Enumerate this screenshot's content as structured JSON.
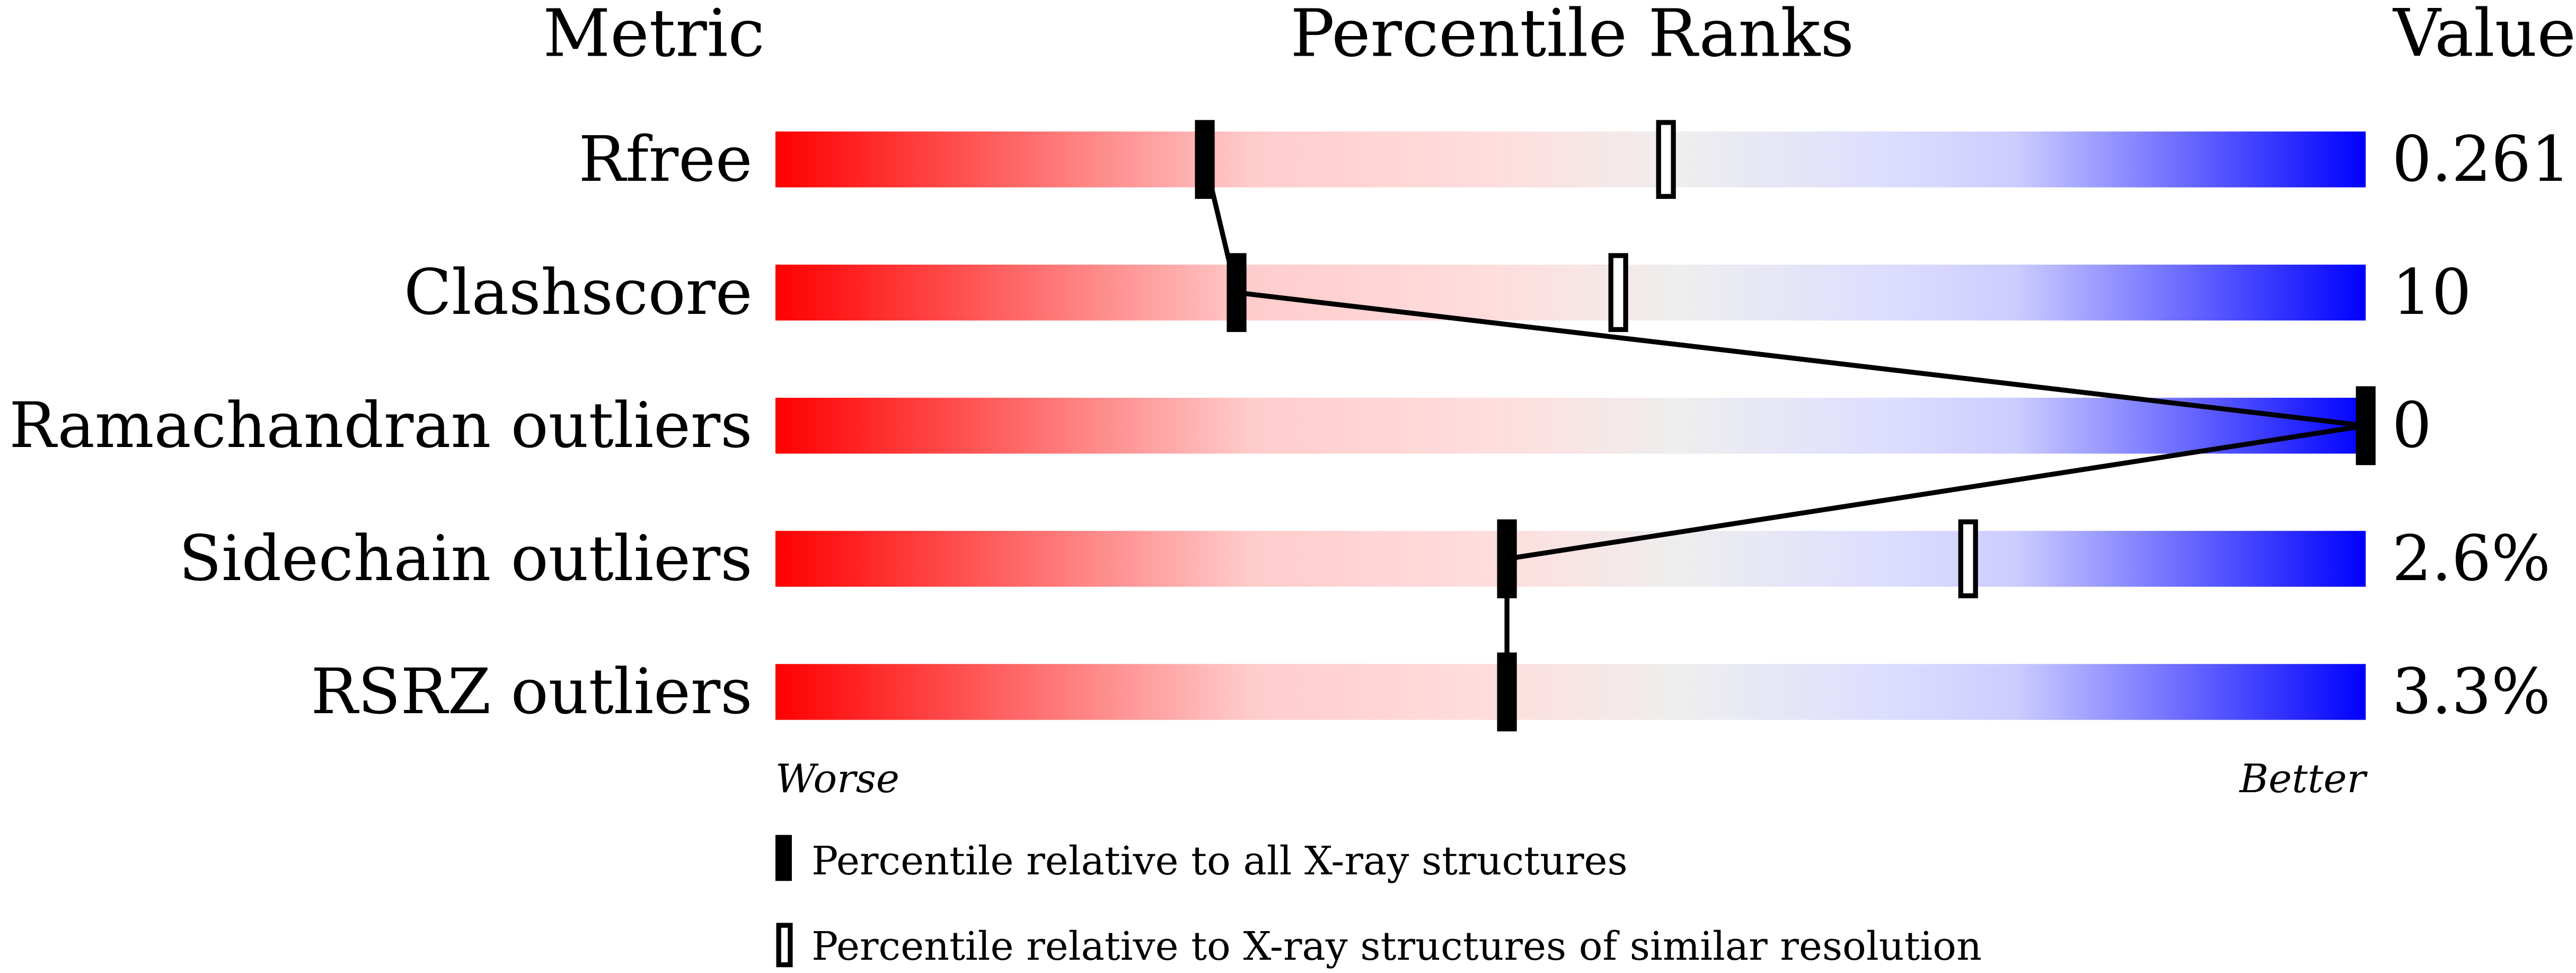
{
  "chart_data": {
    "type": "percentile-bar",
    "headers": {
      "metric": "Metric",
      "ranks": "Percentile Ranks",
      "value": "Value"
    },
    "xlim": [
      0,
      100
    ],
    "axis_labels": {
      "left": "Worse",
      "right": "Better"
    },
    "gradient_colors": [
      "#ff0000",
      "#ffdddd",
      "#eeeeee",
      "#ddddff",
      "#0000ff"
    ],
    "rows": [
      {
        "metric": "Rfree",
        "value": "0.261",
        "percentile_all": 27,
        "percentile_similar": 56
      },
      {
        "metric": "Clashscore",
        "value": "10",
        "percentile_all": 29,
        "percentile_similar": 53
      },
      {
        "metric": "Ramachandran outliers",
        "value": "0",
        "percentile_all": 100,
        "percentile_similar": null
      },
      {
        "metric": "Sidechain outliers",
        "value": "2.6%",
        "percentile_all": 46,
        "percentile_similar": 75
      },
      {
        "metric": "RSRZ outliers",
        "value": "3.3%",
        "percentile_all": 46,
        "percentile_similar": null
      }
    ],
    "legend": [
      {
        "marker": "filled",
        "label": "Percentile relative to all X-ray structures"
      },
      {
        "marker": "open",
        "label": "Percentile relative to X-ray structures of similar resolution"
      }
    ]
  }
}
